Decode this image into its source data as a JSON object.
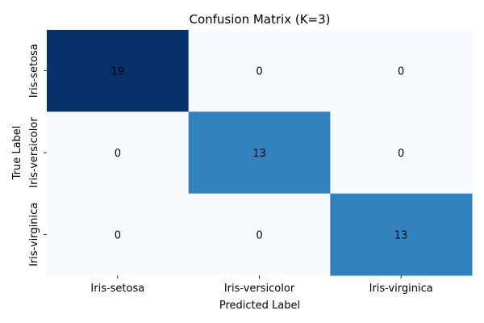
{
  "chart_data": {
    "type": "heatmap",
    "title": "Confusion Matrix (K=3)",
    "xlabel": "Predicted Label",
    "ylabel": "True Label",
    "x_categories": [
      "Iris-setosa",
      "Iris-versicolor",
      "Iris-virginica"
    ],
    "y_categories": [
      "Iris-setosa",
      "Iris-versicolor",
      "Iris-virginica"
    ],
    "matrix": [
      [
        19,
        0,
        0
      ],
      [
        0,
        13,
        0
      ],
      [
        0,
        0,
        13
      ]
    ],
    "colormap": "Blues",
    "colorbar": false,
    "value_range": [
      0,
      19
    ],
    "colors": {
      "low": "#f7fbff",
      "mid": "#3282be",
      "high": "#08306b",
      "text_dark_bg": "#ffffff",
      "text_light_bg": "#262626"
    }
  }
}
